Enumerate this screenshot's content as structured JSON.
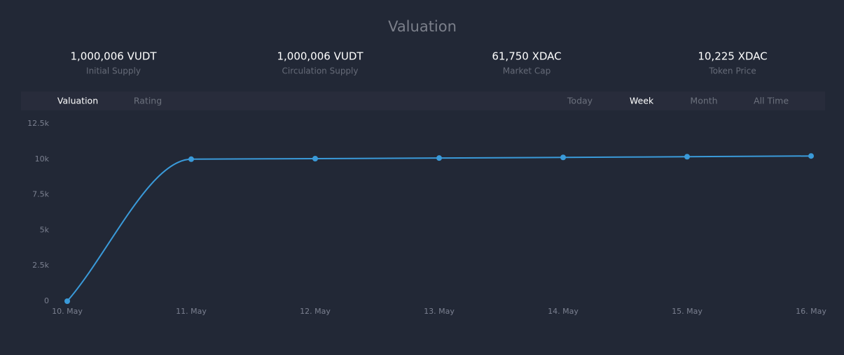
{
  "title": "Valuation",
  "stats": [
    {
      "value": "1,000,006 VUDT",
      "label": "Initial Supply"
    },
    {
      "value": "1,000,006 VUDT",
      "label": "Circulation Supply"
    },
    {
      "value": "61,750 XDAC",
      "label": "Market Cap"
    },
    {
      "value": "10,225 XDAC",
      "label": "Token Price"
    }
  ],
  "tabs": [
    "Valuation",
    "Rating"
  ],
  "active_tab": 0,
  "ranges": [
    "Today",
    "Week",
    "Month",
    "All Time"
  ],
  "active_range": 1,
  "chart_data": {
    "type": "line",
    "categories": [
      "10. May",
      "11. May",
      "12. May",
      "13. May",
      "14. May",
      "15. May",
      "16. May"
    ],
    "series": [
      {
        "name": "Valuation",
        "color": "#3a9ad9",
        "values": [
          0,
          10000,
          10040,
          10080,
          10125,
          10175,
          10225
        ]
      }
    ],
    "ylim": [
      0,
      12500
    ],
    "yticks": [
      0,
      {
        "value": 2500,
        "label": "2.5k"
      },
      {
        "value": 5000,
        "label": "5k"
      },
      {
        "value": 7500,
        "label": "7.5k"
      },
      {
        "value": 10000,
        "label": "10k"
      },
      {
        "value": 12500,
        "label": "12.5k"
      }
    ],
    "grid": false
  }
}
